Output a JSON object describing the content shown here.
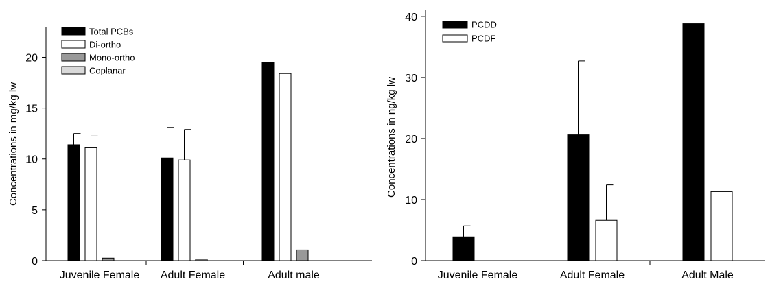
{
  "chart_data": [
    {
      "type": "bar",
      "title": "",
      "xlabel": "",
      "ylabel": "Concentrations in mg/kg lw",
      "ylim": [
        0,
        23
      ],
      "yticks": [
        0,
        5,
        10,
        15,
        20
      ],
      "categories": [
        "Juvenile Female",
        "Adult Female",
        "Adult male"
      ],
      "series": [
        {
          "name": "Total PCBs",
          "color": "#000000",
          "values": [
            11.4,
            10.1,
            19.5
          ],
          "errors": [
            1.1,
            3.0,
            null
          ]
        },
        {
          "name": "Di-ortho",
          "color": "#ffffff",
          "values": [
            11.1,
            9.9,
            18.4
          ],
          "errors": [
            1.15,
            3.0,
            null
          ]
        },
        {
          "name": "Mono-ortho",
          "color": "#999999",
          "values": [
            0.25,
            0.15,
            1.05
          ],
          "errors": [
            null,
            null,
            null
          ]
        },
        {
          "name": "Coplanar",
          "color": "#d9d9d9",
          "values": [
            0,
            0,
            0
          ],
          "errors": [
            null,
            null,
            null
          ]
        }
      ],
      "legend_position": "top-left",
      "grid": false
    },
    {
      "type": "bar",
      "title": "",
      "xlabel": "",
      "ylabel": "Concentrations in ng/kg lw",
      "ylim": [
        0,
        41
      ],
      "yticks": [
        0,
        10,
        20,
        30,
        40
      ],
      "categories": [
        "Juvenile Female",
        "Adult Female",
        "Adult Male"
      ],
      "series": [
        {
          "name": "PCDD",
          "color": "#000000",
          "values": [
            3.9,
            20.6,
            38.8
          ],
          "errors": [
            1.8,
            12.1,
            null
          ]
        },
        {
          "name": "PCDF",
          "color": "#ffffff",
          "values": [
            0,
            6.6,
            11.3
          ],
          "errors": [
            null,
            5.8,
            null
          ]
        }
      ],
      "legend_position": "top-left",
      "grid": false
    }
  ]
}
